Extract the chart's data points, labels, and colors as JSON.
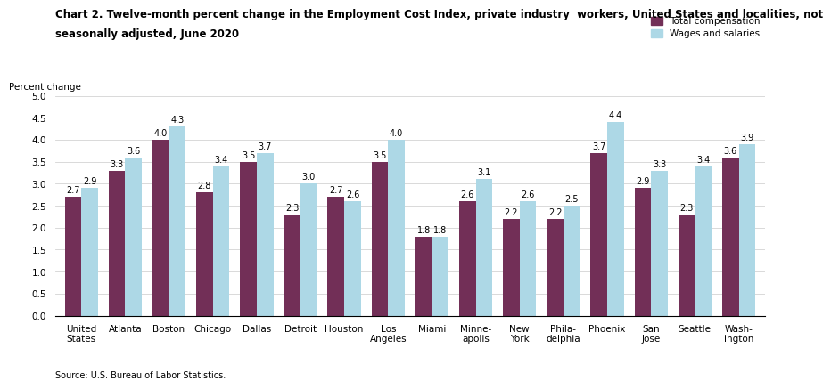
{
  "categories": [
    "United\nStates",
    "Atlanta",
    "Boston",
    "Chicago",
    "Dallas",
    "Detroit",
    "Houston",
    "Los\nAngeles",
    "Miami",
    "Minne-\napolis",
    "New\nYork",
    "Phila-\ndelphia",
    "Phoenix",
    "San\nJose",
    "Seattle",
    "Wash-\nington"
  ],
  "total_compensation": [
    2.7,
    3.3,
    4.0,
    2.8,
    3.5,
    2.3,
    2.7,
    3.5,
    1.8,
    2.6,
    2.2,
    2.2,
    3.7,
    2.9,
    2.3,
    3.6
  ],
  "wages_and_salaries": [
    2.9,
    3.6,
    4.3,
    3.4,
    3.7,
    3.0,
    2.6,
    4.0,
    1.8,
    3.1,
    2.6,
    2.5,
    4.4,
    3.3,
    3.4,
    3.9
  ],
  "total_compensation_color": "#722F57",
  "wages_and_salaries_color": "#ADD8E6",
  "total_compensation_label": "Total compensation",
  "wages_and_salaries_label": "Wages and salaries",
  "title_line1": "Chart 2. Twelve-month percent change in the Employment Cost Index, private industry  workers, United States and localities, not",
  "title_line2": "seasonally adjusted, June 2020",
  "ylabel": "Percent change",
  "ylim": [
    0.0,
    5.0
  ],
  "yticks": [
    0.0,
    0.5,
    1.0,
    1.5,
    2.0,
    2.5,
    3.0,
    3.5,
    4.0,
    4.5,
    5.0
  ],
  "source": "Source: U.S. Bureau of Labor Statistics.",
  "bar_width": 0.38,
  "title_fontsize": 8.5,
  "label_fontsize": 7.5,
  "tick_fontsize": 7.5,
  "value_fontsize": 7.0
}
